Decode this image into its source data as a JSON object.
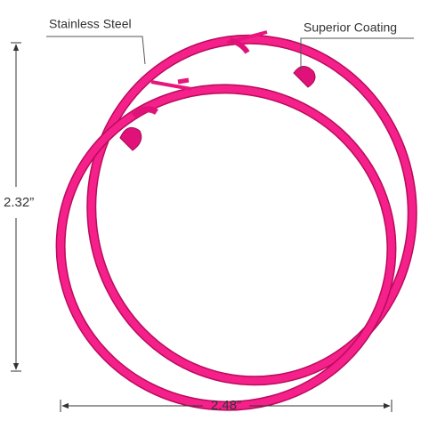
{
  "labels": {
    "material": "Stainless Steel",
    "coating": "Superior Coating"
  },
  "dimensions": {
    "height": "2.32”",
    "width": "2.48”"
  }
}
